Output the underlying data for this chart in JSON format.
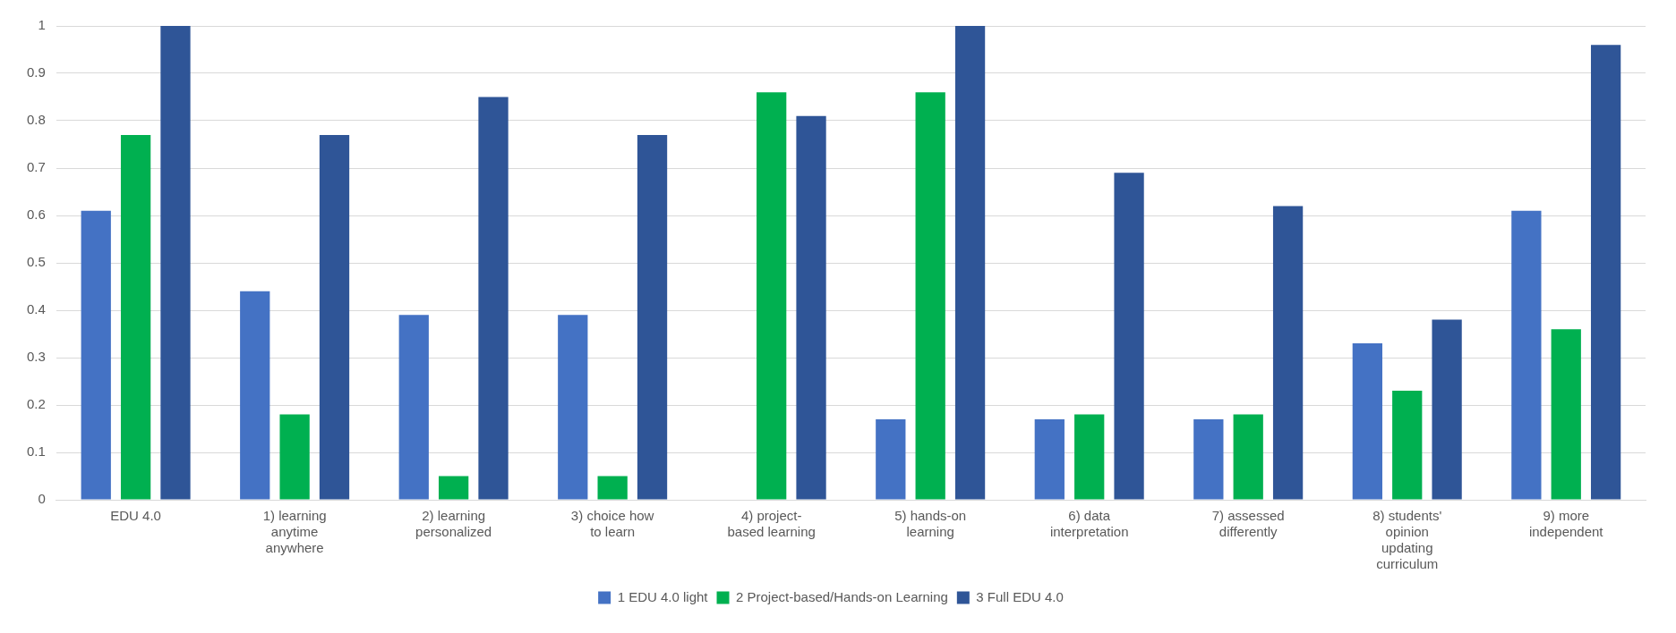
{
  "chart_data": {
    "type": "bar",
    "categories": [
      "EDU 4.0",
      "1) learning anytime anywhere",
      "2) learning personalized",
      "3) choice how to learn",
      "4) project-based learning",
      "5) hands-on learning",
      "6) data interpretation",
      "7) assessed differently",
      "8) students' opinion updating curriculum",
      "9) more independent"
    ],
    "series": [
      {
        "name": "1 EDU 4.0 light",
        "color": "#4472c4",
        "values": [
          0.61,
          0.44,
          0.39,
          0.39,
          0,
          0.17,
          0.17,
          0.17,
          0.33,
          0.61
        ]
      },
      {
        "name": "2 Project-based/Hands-on Learning",
        "color": "#00b050",
        "values": [
          0.77,
          0.18,
          0.05,
          0.05,
          0.86,
          0.86,
          0.18,
          0.18,
          0.23,
          0.36
        ]
      },
      {
        "name": "3 Full EDU 4.0",
        "color": "#2f5597",
        "values": [
          1,
          0.77,
          0.85,
          0.77,
          0.81,
          1,
          0.69,
          0.62,
          0.38,
          0.96
        ]
      }
    ],
    "ylim": [
      0,
      1
    ],
    "yticks": [
      0,
      0.1,
      0.2,
      0.3,
      0.4,
      0.5,
      0.6,
      0.7,
      0.8,
      0.9,
      1
    ],
    "grid": "y",
    "legend": "bottom"
  }
}
